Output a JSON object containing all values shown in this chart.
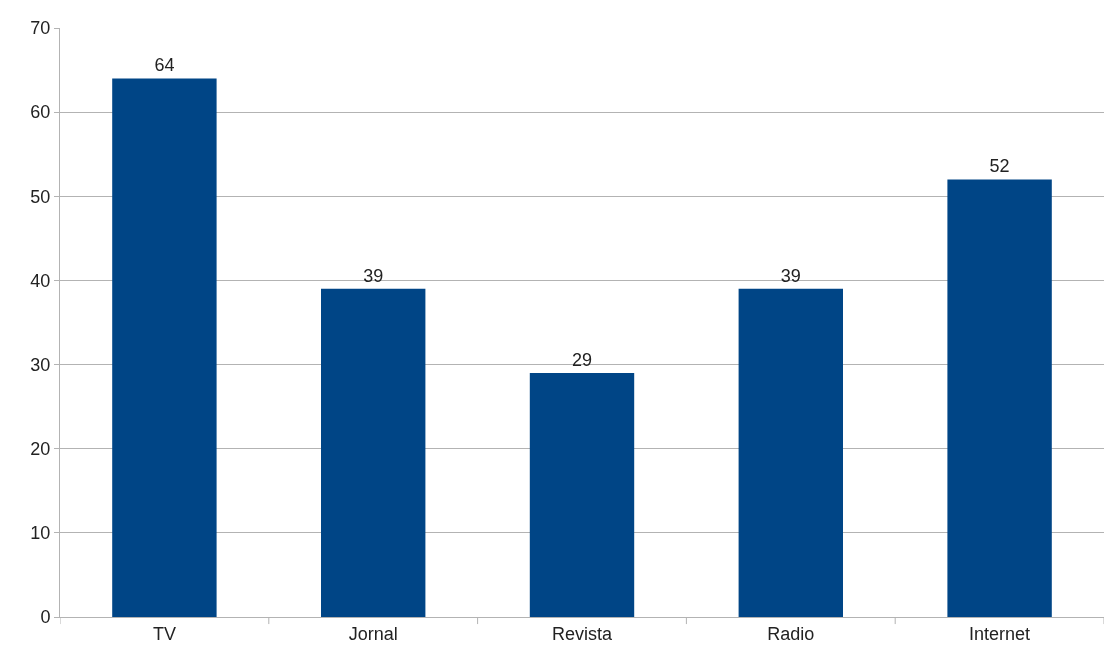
{
  "chart_data": {
    "type": "bar",
    "categories": [
      "TV",
      "Jornal",
      "Revista",
      "Radio",
      "Internet"
    ],
    "values": [
      64,
      39,
      29,
      39,
      52
    ],
    "color": "#004586",
    "ylim": [
      0,
      70
    ],
    "yticks": [
      0,
      10,
      20,
      30,
      40,
      50,
      60,
      70
    ],
    "grid": "y",
    "data_labels": true
  }
}
